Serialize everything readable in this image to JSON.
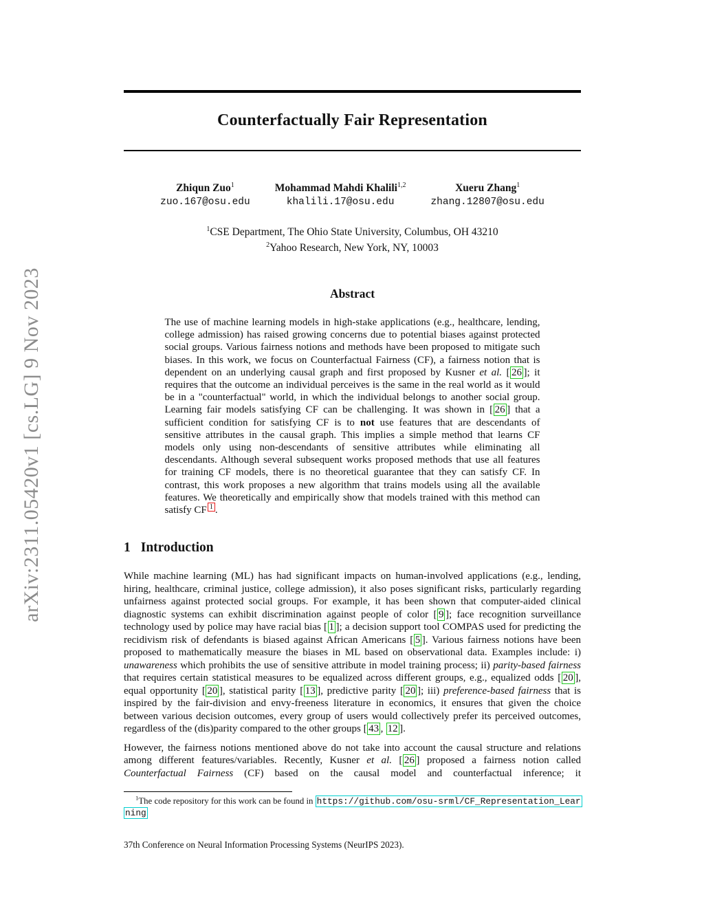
{
  "arxiv_banner": "arXiv:2311.05420v1  [cs.LG]  9 Nov 2023",
  "colors": {
    "citation_box": "#1fc71f",
    "footnote_box": "#e81717",
    "url_box": "#00cfcf",
    "banner_text": "#8c8c8c"
  },
  "paper": {
    "title": "Counterfactually Fair Representation",
    "authors": [
      {
        "name": "Zhiqun Zuo",
        "sup": "1",
        "email": "zuo.167@osu.edu"
      },
      {
        "name": "Mohammad Mahdi Khalili",
        "sup": "1,2",
        "email": "khalili.17@osu.edu"
      },
      {
        "name": "Xueru Zhang",
        "sup": "1",
        "email": "zhang.12807@osu.edu"
      }
    ],
    "affiliations": [
      {
        "sup": "1",
        "text": "CSE Department, The Ohio State University, Columbus, OH 43210"
      },
      {
        "sup": "2",
        "text": "Yahoo Research, New York, NY, 10003"
      }
    ],
    "abstract": {
      "heading": "Abstract",
      "segments": [
        {
          "t": "The use of machine learning models in high-stake applications (e.g., healthcare, lending, college admission) has raised growing concerns due to potential biases against protected social groups. Various fairness notions and methods have been proposed to mitigate such biases. In this work, we focus on Counterfactual Fairness (CF), a fairness notion that is dependent on an underlying causal graph and first proposed by Kusner ",
          "s": "n"
        },
        {
          "t": "et al.",
          "s": "i"
        },
        {
          "t": " [",
          "s": "n"
        },
        {
          "t": "26",
          "s": "cite"
        },
        {
          "t": "]; it requires that the outcome an individual perceives is the same in the real world as it would be in a \"counterfactual\" world, in which the individual belongs to another social group. Learning fair models satisfying CF can be challenging. It was shown in [",
          "s": "n"
        },
        {
          "t": "26",
          "s": "cite"
        },
        {
          "t": "] that a sufficient condition for satisfying CF is to ",
          "s": "n"
        },
        {
          "t": "not",
          "s": "b"
        },
        {
          "t": " use features that are descendants of sensitive attributes in the causal graph. This implies a simple method that learns CF models only using non-descendants of sensitive attributes while eliminating all descendants. Although several subsequent works proposed methods that use all features for training CF models, there is no theoretical guarantee that they can satisfy CF. In contrast, this work proposes a new algorithm that trains models using all the available features. We theoretically and empirically show that models trained with this method can satisfy CF",
          "s": "n"
        },
        {
          "t": "1",
          "s": "fnref"
        },
        {
          "t": ".",
          "s": "n"
        }
      ]
    },
    "sections": [
      {
        "number": "1",
        "heading": "Introduction",
        "paragraphs": [
          {
            "segments": [
              {
                "t": "While machine learning (ML) has had significant impacts on human-involved applications (e.g., lending, hiring, healthcare, criminal justice, college admission), it also poses significant risks, particularly regarding unfairness against protected social groups. For example, it has been shown that computer-aided clinical diagnostic systems can exhibit discrimination against people of color [",
                "s": "n"
              },
              {
                "t": "9",
                "s": "cite"
              },
              {
                "t": "]; face recognition surveillance technology used by police may have racial bias [",
                "s": "n"
              },
              {
                "t": "1",
                "s": "cite"
              },
              {
                "t": "]; a decision support tool COMPAS used for predicting the recidivism risk of defendants is biased against African Americans [",
                "s": "n"
              },
              {
                "t": "5",
                "s": "cite"
              },
              {
                "t": "]. Various fairness notions have been proposed to mathematically measure the biases in ML based on observational data. Examples include: i) ",
                "s": "n"
              },
              {
                "t": "unawareness",
                "s": "i"
              },
              {
                "t": " which prohibits the use of sensitive attribute in model training process; ii) ",
                "s": "n"
              },
              {
                "t": "parity-based fairness",
                "s": "i"
              },
              {
                "t": " that requires certain statistical measures to be equalized across different groups, e.g., equalized odds [",
                "s": "n"
              },
              {
                "t": "20",
                "s": "cite"
              },
              {
                "t": "], equal opportunity [",
                "s": "n"
              },
              {
                "t": "20",
                "s": "cite"
              },
              {
                "t": "], statistical parity [",
                "s": "n"
              },
              {
                "t": "13",
                "s": "cite"
              },
              {
                "t": "], predictive parity [",
                "s": "n"
              },
              {
                "t": "20",
                "s": "cite"
              },
              {
                "t": "]; iii) ",
                "s": "n"
              },
              {
                "t": "preference-based fairness",
                "s": "i"
              },
              {
                "t": " that is inspired by the fair-division and envy-freeness literature in economics, it ensures that given the choice between various decision outcomes, every group of users would collectively prefer its perceived outcomes, regardless of the (dis)parity compared to the other groups [",
                "s": "n"
              },
              {
                "t": "43",
                "s": "cite"
              },
              {
                "t": ", ",
                "s": "n"
              },
              {
                "t": "12",
                "s": "cite"
              },
              {
                "t": "].",
                "s": "n"
              }
            ]
          },
          {
            "segments": [
              {
                "t": "However, the fairness notions mentioned above do not take into account the causal structure and relations among different features/variables. Recently, Kusner ",
                "s": "n"
              },
              {
                "t": "et al.",
                "s": "i"
              },
              {
                "t": " [",
                "s": "n"
              },
              {
                "t": "26",
                "s": "cite"
              },
              {
                "t": "] proposed a fairness notion called ",
                "s": "n"
              },
              {
                "t": "Counterfactual Fairness",
                "s": "i"
              },
              {
                "t": " (CF) based on the causal model and counterfactual inference; it",
                "s": "n"
              }
            ]
          }
        ]
      }
    ],
    "footnote": {
      "segments": [
        {
          "t": "1",
          "s": "sup"
        },
        {
          "t": "The code repository for this work can be found in ",
          "s": "n"
        },
        {
          "t": "https://github.com/osu-srml/CF_Representation_Learning",
          "s": "url"
        }
      ]
    },
    "conference_note": "37th Conference on Neural Information Processing Systems (NeurIPS 2023)."
  }
}
